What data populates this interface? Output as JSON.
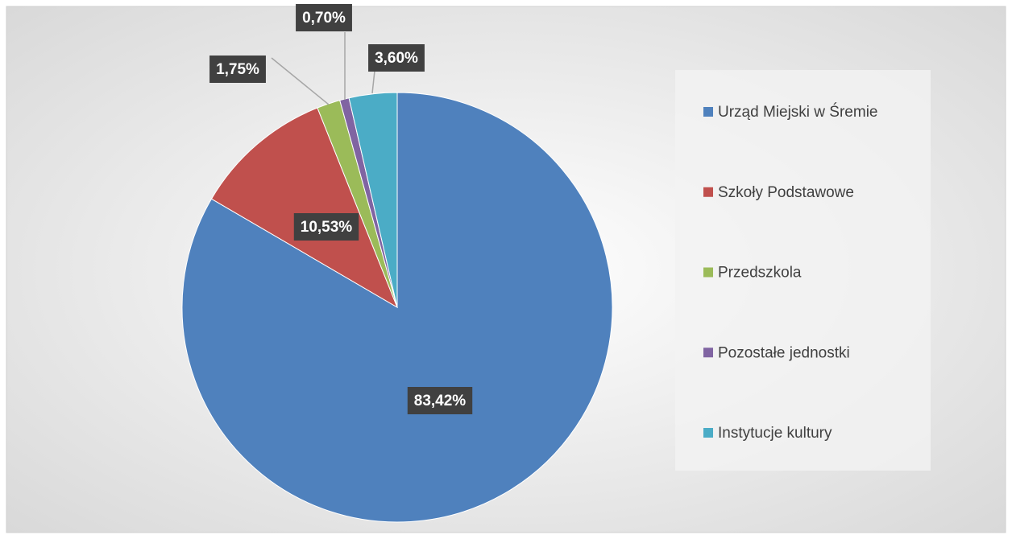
{
  "chart_data": {
    "type": "pie",
    "categories": [
      "Urząd Miejski w Śremie",
      "Szkoły Podstawowe",
      "Przedszkola",
      "Pozostałe jednostki",
      "Instytucje kultury"
    ],
    "values": [
      83.42,
      10.53,
      1.75,
      0.7,
      3.6
    ],
    "value_labels": [
      "83,42%",
      "10,53%",
      "1,75%",
      "0,70%",
      "3,60%"
    ],
    "colors": [
      "#4f81bd",
      "#c0504d",
      "#9bbb59",
      "#8064a2",
      "#4bacc6"
    ],
    "legend": "right"
  }
}
